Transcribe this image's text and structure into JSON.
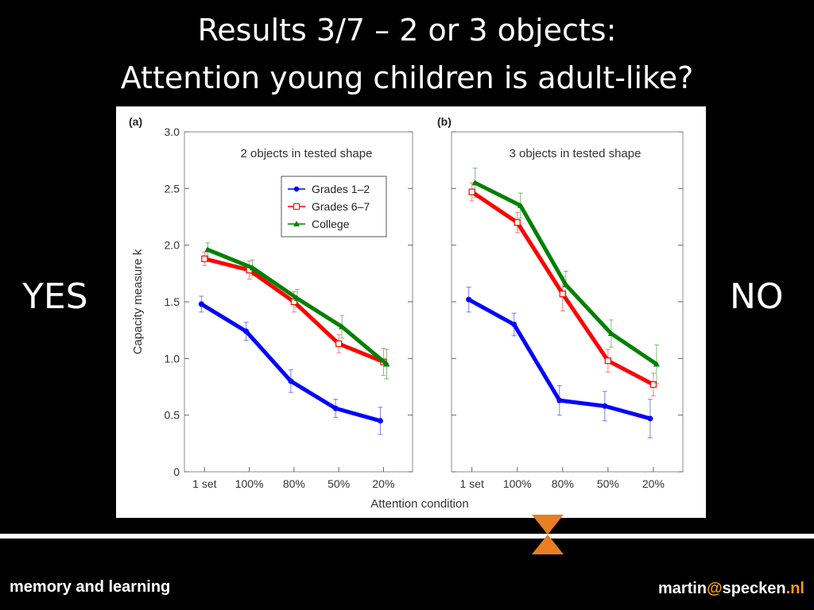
{
  "slide": {
    "title_line1": "Results 3/7 – 2 or 3 objects:",
    "title_line2": "Attention young children is adult-like?",
    "left_label": "YES",
    "right_label": "NO",
    "footer_left": "memory and learning",
    "footer_right_user": "martin",
    "footer_right_at": "@",
    "footer_right_domain": "specken",
    "footer_right_dot": ".",
    "footer_right_tld": "nl",
    "accent_color": "#f39c12",
    "marker_color": "#e67e22"
  },
  "figure": {
    "ylabel": "Capacity measure k",
    "xlabel": "Attention condition"
  },
  "chart_data": [
    {
      "type": "line",
      "panel_label": "(a)",
      "title": "2 objects in tested shape",
      "categories": [
        "1 set",
        "100%",
        "80%",
        "50%",
        "20%"
      ],
      "ylim": [
        0,
        3.0
      ],
      "yticks": [
        "0",
        "0.5",
        "1.0",
        "1.5",
        "2.0",
        "2.5",
        "3.0"
      ],
      "legend_position": "top-right",
      "series": [
        {
          "name": "Grades 1–2",
          "color": "#0000ff",
          "marker": "circle",
          "values": [
            1.48,
            1.24,
            0.8,
            0.56,
            0.45
          ],
          "errors": [
            0.07,
            0.08,
            0.1,
            0.08,
            0.12
          ]
        },
        {
          "name": "Grades 6–7",
          "color": "#ff0000",
          "marker": "square",
          "values": [
            1.88,
            1.78,
            1.5,
            1.13,
            0.97
          ],
          "errors": [
            0.06,
            0.08,
            0.09,
            0.08,
            0.12
          ]
        },
        {
          "name": "College",
          "color": "#008000",
          "marker": "triangle",
          "values": [
            1.96,
            1.8,
            1.53,
            1.28,
            0.95
          ],
          "errors": [
            0.06,
            0.07,
            0.08,
            0.1,
            0.13
          ]
        }
      ]
    },
    {
      "type": "line",
      "panel_label": "(b)",
      "title": "3 objects in tested shape",
      "categories": [
        "1 set",
        "100%",
        "80%",
        "50%",
        "20%"
      ],
      "ylim": [
        0,
        3.0
      ],
      "series": [
        {
          "name": "Grades 1–2",
          "color": "#0000ff",
          "marker": "circle",
          "values": [
            1.52,
            1.3,
            0.63,
            0.58,
            0.47
          ],
          "errors": [
            0.11,
            0.1,
            0.13,
            0.13,
            0.17
          ]
        },
        {
          "name": "Grades 6–7",
          "color": "#ff0000",
          "marker": "square",
          "values": [
            2.47,
            2.2,
            1.57,
            0.98,
            0.77
          ],
          "errors": [
            0.08,
            0.09,
            0.15,
            0.1,
            0.1
          ]
        },
        {
          "name": "College",
          "color": "#008000",
          "marker": "triangle",
          "values": [
            2.55,
            2.35,
            1.65,
            1.22,
            0.95
          ],
          "errors": [
            0.13,
            0.11,
            0.12,
            0.12,
            0.17
          ]
        }
      ]
    }
  ]
}
